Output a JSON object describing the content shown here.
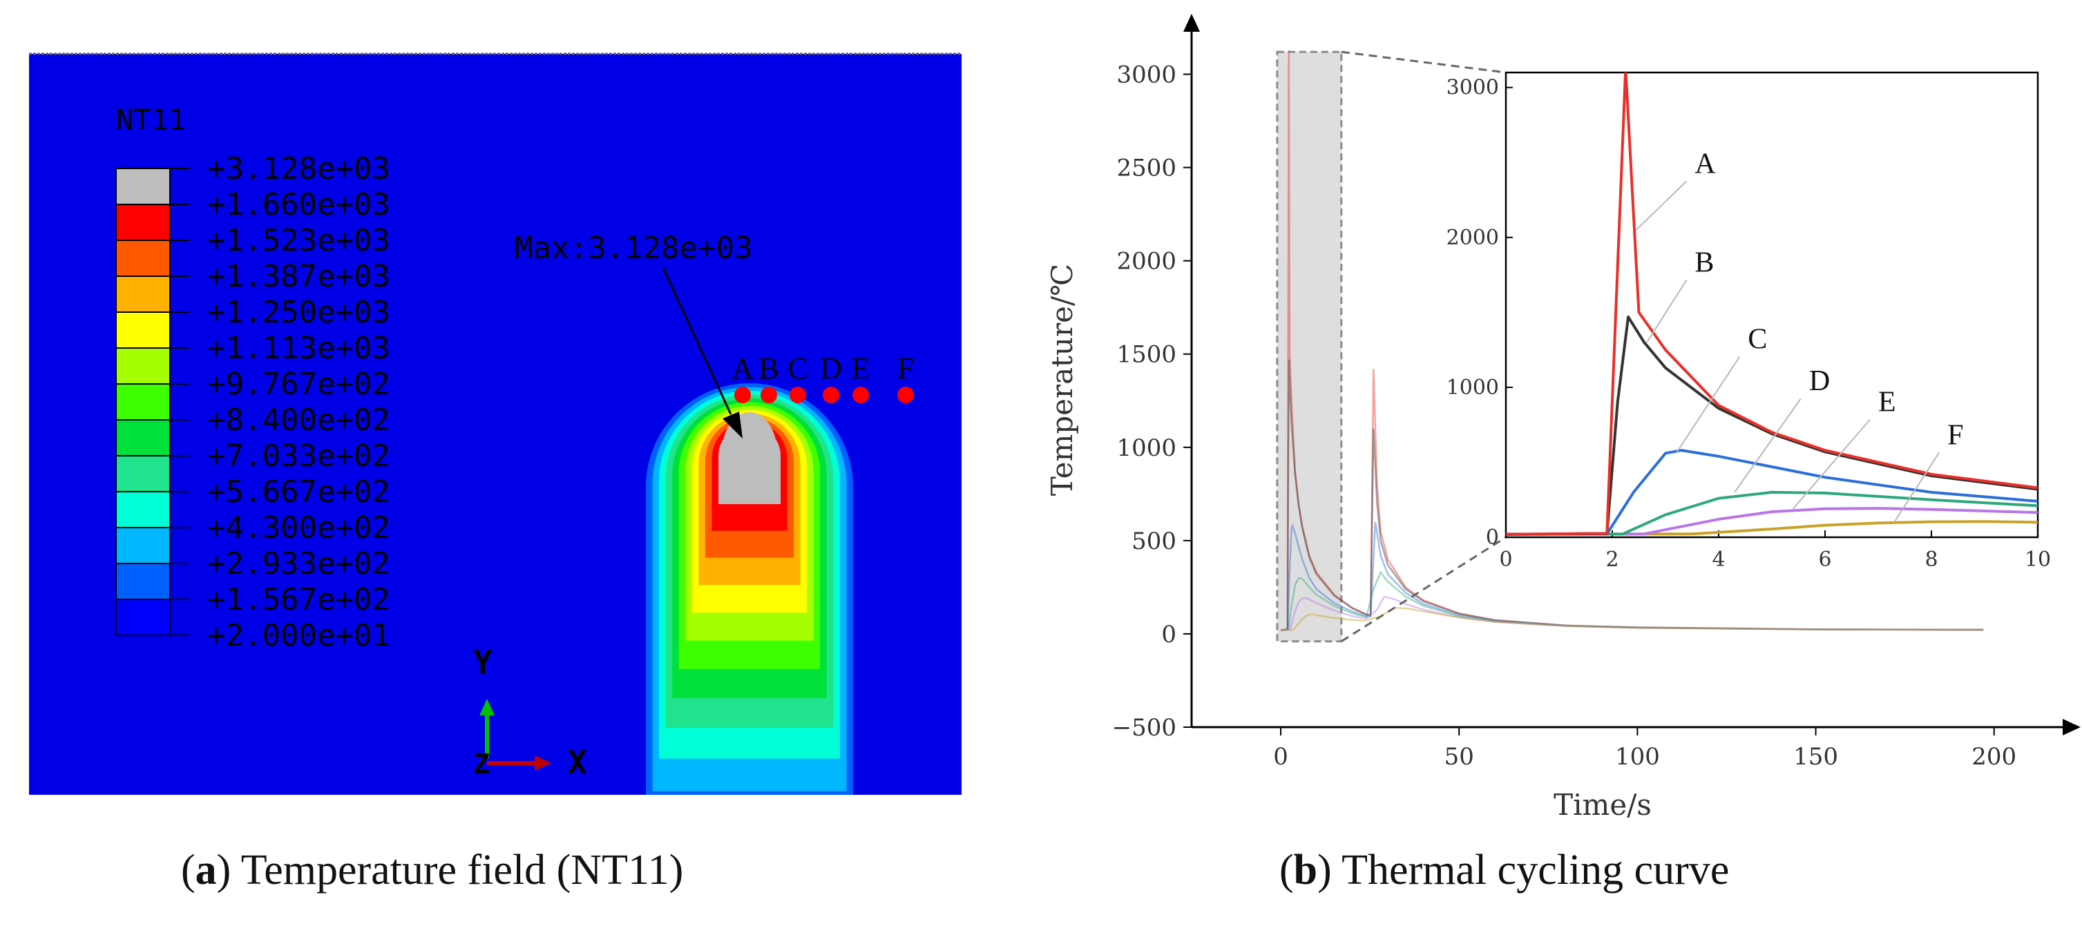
{
  "captions": {
    "a_letter": "a",
    "a_text": "Temperature field (NT11)",
    "b_letter": "b",
    "b_text": "Thermal cycling curve"
  },
  "panel_a": {
    "legend_title": "NT11",
    "legend_colors": [
      "#bdbdbd",
      "#ff0000",
      "#ff5a00",
      "#ffb300",
      "#ffff00",
      "#a6ff00",
      "#3cff00",
      "#00e03a",
      "#22e38d",
      "#00ffd6",
      "#00b6ff",
      "#0060ff",
      "#0000ff"
    ],
    "legend_values": [
      "+3.128e+03",
      "+1.660e+03",
      "+1.523e+03",
      "+1.387e+03",
      "+1.250e+03",
      "+1.113e+03",
      "+9.767e+02",
      "+8.400e+02",
      "+7.033e+02",
      "+5.667e+02",
      "+4.300e+02",
      "+2.933e+02",
      "+1.567e+02",
      "+2.000e+01"
    ],
    "max_label": "Max:3.128e+03",
    "points": [
      "A",
      "B",
      "C",
      "D",
      "E",
      "F"
    ],
    "axis_y": "Y",
    "axis_x": "X",
    "axis_z": "Z",
    "background_color": "#0000e6"
  },
  "chart_data": {
    "type": "line",
    "xlabel": "Time/s",
    "ylabel": "Temperature/℃",
    "xlim": [
      -25,
      220
    ],
    "ylim": [
      -500,
      3250
    ],
    "xticks": [
      0,
      50,
      100,
      150,
      200
    ],
    "yticks": [
      -500,
      0,
      500,
      1000,
      1500,
      2000,
      2500,
      3000
    ],
    "series": [
      {
        "name": "A",
        "color": "#e8302a",
        "x": [
          0,
          1.9,
          2.1,
          2.25,
          2.5,
          3,
          4,
          5,
          6,
          8,
          10,
          15,
          20,
          24,
          25.2,
          26,
          27,
          28,
          30,
          35,
          40,
          50,
          60,
          80,
          100,
          150,
          197
        ],
        "y": [
          20,
          25,
          1800,
          3128,
          1500,
          1250,
          880,
          700,
          580,
          420,
          330,
          210,
          140,
          105,
          100,
          1420,
          800,
          550,
          400,
          250,
          180,
          110,
          75,
          45,
          35,
          25,
          22
        ]
      },
      {
        "name": "B",
        "color": "#333333",
        "x": [
          0,
          1.9,
          2.1,
          2.3,
          2.6,
          3,
          4,
          5,
          6,
          8,
          10,
          15,
          20,
          24,
          25.2,
          26,
          27,
          28,
          30,
          35,
          40,
          50,
          60,
          80,
          100,
          150,
          197
        ],
        "y": [
          20,
          25,
          900,
          1470,
          1300,
          1130,
          860,
          690,
          570,
          410,
          320,
          205,
          138,
          103,
          100,
          1100,
          700,
          500,
          370,
          240,
          175,
          108,
          72,
          44,
          34,
          24,
          22
        ]
      },
      {
        "name": "C",
        "color": "#2a6fd9",
        "x": [
          0,
          1.9,
          2.4,
          3,
          3.3,
          4,
          5,
          6,
          8,
          10,
          15,
          20,
          24,
          25.2,
          26.5,
          28,
          30,
          35,
          40,
          50,
          60,
          80,
          100,
          150,
          197
        ],
        "y": [
          20,
          22,
          300,
          560,
          580,
          540,
          470,
          400,
          300,
          240,
          165,
          120,
          95,
          92,
          600,
          420,
          320,
          220,
          160,
          100,
          70,
          44,
          34,
          24,
          22
        ]
      },
      {
        "name": "D",
        "color": "#2ea87a",
        "x": [
          0,
          2.2,
          3,
          4,
          5,
          6,
          8,
          10,
          15,
          20,
          24,
          26,
          28,
          30,
          35,
          40,
          50,
          60,
          80,
          100,
          150,
          197
        ],
        "y": [
          20,
          22,
          150,
          260,
          300,
          295,
          250,
          210,
          150,
          110,
          90,
          240,
          330,
          280,
          200,
          150,
          95,
          68,
          43,
          33,
          24,
          22
        ]
      },
      {
        "name": "E",
        "color": "#b876e8",
        "x": [
          0,
          2.6,
          4,
          5,
          6,
          7,
          8,
          10,
          15,
          20,
          24,
          27,
          29,
          32,
          35,
          40,
          50,
          60,
          80,
          100,
          150,
          197
        ],
        "y": [
          20,
          22,
          120,
          170,
          190,
          193,
          185,
          165,
          125,
          95,
          82,
          130,
          200,
          185,
          160,
          130,
          88,
          64,
          42,
          32,
          24,
          22
        ]
      },
      {
        "name": "F",
        "color": "#c9a227",
        "x": [
          0,
          3.5,
          5,
          6,
          7,
          8,
          9,
          10,
          15,
          20,
          24,
          28,
          32,
          36,
          40,
          50,
          60,
          80,
          100,
          150,
          197
        ],
        "y": [
          20,
          22,
          55,
          80,
          95,
          103,
          105,
          100,
          85,
          75,
          72,
          95,
          140,
          135,
          120,
          88,
          64,
          42,
          32,
          24,
          22
        ]
      }
    ],
    "inset": {
      "xlim": [
        0,
        10
      ],
      "ylim": [
        0,
        3100
      ],
      "xticks": [
        0,
        2,
        4,
        6,
        8,
        10
      ],
      "yticks": [
        0,
        1000,
        2000,
        3000
      ],
      "labels": [
        "A",
        "B",
        "C",
        "D",
        "E",
        "F"
      ]
    },
    "grid": false
  }
}
